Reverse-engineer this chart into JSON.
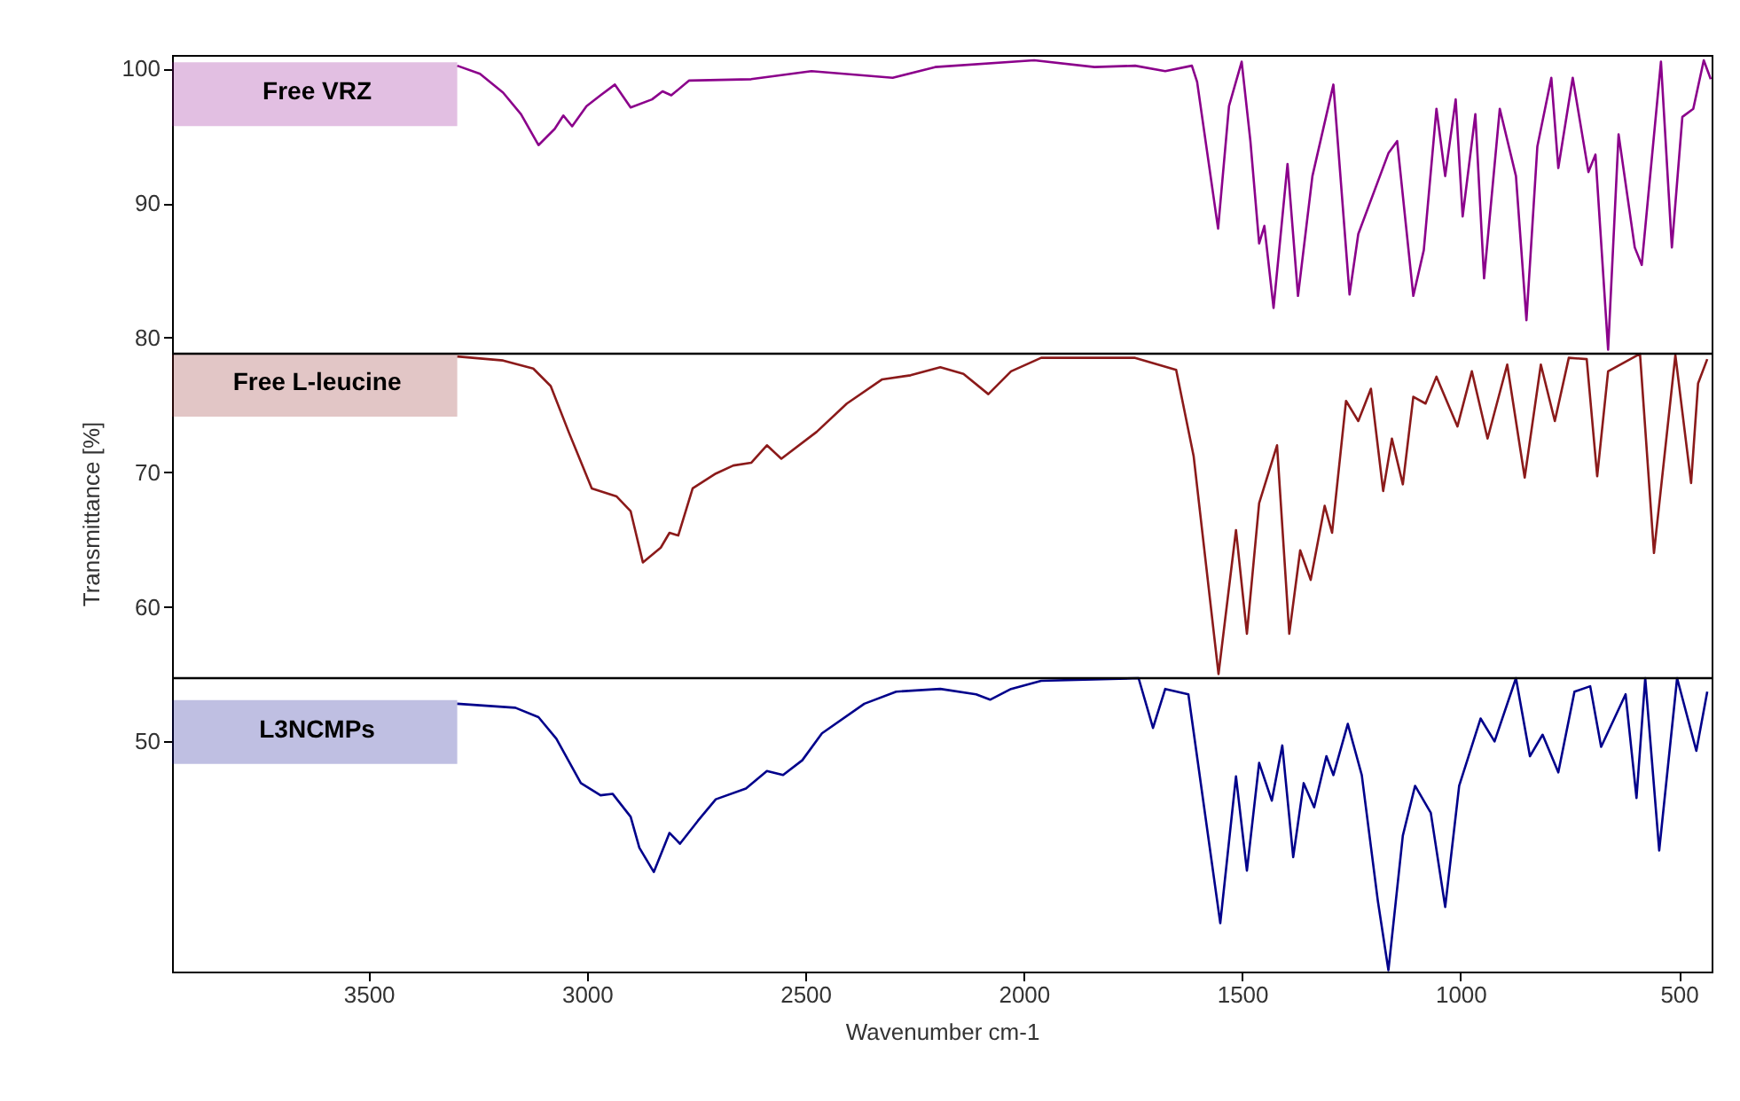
{
  "chart_data": {
    "type": "line",
    "xlabel": "Wavenumber cm-1",
    "ylabel": "Transmittance [%]",
    "xlim": [
      3950,
      425
    ],
    "ylim": [
      32.9,
      101
    ],
    "xticks": [
      3500,
      3000,
      2500,
      2000,
      1500,
      1000,
      500
    ],
    "yticks": [
      100,
      90,
      80,
      70,
      60,
      50
    ],
    "grid": false,
    "ref_lines": [
      {
        "axis": "y",
        "value": 78.8,
        "color": "#000000"
      },
      {
        "axis": "y",
        "value": 54.7,
        "color": "#000000"
      }
    ],
    "series": [
      {
        "name": "Free VRZ",
        "color": "#8b008b",
        "x": [
          3297,
          3245,
          3192,
          3151,
          3111,
          3074,
          3054,
          3034,
          3001,
          2969,
          2936,
          2900,
          2851,
          2827,
          2807,
          2766,
          2624,
          2486,
          2300,
          2203,
          1976,
          1838,
          1745,
          1676,
          1615,
          1603,
          1555,
          1530,
          1501,
          1481,
          1461,
          1449,
          1428,
          1396,
          1372,
          1339,
          1291,
          1254,
          1234,
          1165,
          1145,
          1108,
          1084,
          1055,
          1035,
          1011,
          995,
          966,
          946,
          910,
          873,
          849,
          824,
          792,
          776,
          743,
          707,
          691,
          662,
          638,
          601,
          585,
          541,
          516,
          492,
          467,
          443,
          427
        ],
        "values": [
          100.2,
          99.6,
          98.2,
          96.6,
          94.3,
          95.5,
          96.5,
          95.7,
          97.2,
          98.0,
          98.8,
          97.1,
          97.7,
          98.3,
          98.0,
          99.1,
          99.2,
          99.8,
          99.3,
          100.1,
          100.6,
          100.1,
          100.2,
          99.8,
          100.2,
          99.0,
          88.1,
          97.2,
          100.5,
          94.6,
          87.0,
          88.3,
          82.2,
          92.9,
          83.1,
          92.0,
          98.8,
          83.2,
          87.7,
          93.7,
          94.6,
          83.1,
          86.5,
          97.0,
          92.0,
          97.7,
          89.0,
          96.6,
          84.4,
          97.0,
          92.0,
          81.3,
          94.2,
          99.3,
          92.6,
          99.3,
          92.3,
          93.6,
          79.1,
          95.1,
          86.7,
          85.4,
          100.5,
          86.7,
          96.4,
          97.0,
          100.6,
          99.2
        ]
      },
      {
        "name": "Free L-leucine",
        "color": "#8b1a1a",
        "x": [
          3297,
          3192,
          3123,
          3083,
          3042,
          2989,
          2932,
          2900,
          2872,
          2831,
          2811,
          2791,
          2758,
          2705,
          2665,
          2624,
          2588,
          2555,
          2474,
          2405,
          2324,
          2259,
          2191,
          2138,
          2081,
          2029,
          1960,
          1745,
          1651,
          1611,
          1554,
          1514,
          1489,
          1461,
          1420,
          1392,
          1367,
          1343,
          1311,
          1294,
          1262,
          1234,
          1205,
          1177,
          1157,
          1132,
          1108,
          1080,
          1055,
          1007,
          974,
          938,
          893,
          853,
          816,
          784,
          752,
          711,
          687,
          662,
          589,
          557,
          508,
          472,
          456,
          435
        ],
        "values": [
          78.6,
          78.3,
          77.7,
          76.4,
          73.0,
          68.8,
          68.2,
          67.1,
          63.3,
          64.4,
          65.5,
          65.3,
          68.8,
          69.9,
          70.5,
          70.7,
          72.0,
          71.0,
          73.0,
          75.1,
          76.9,
          77.2,
          77.8,
          77.3,
          75.8,
          77.5,
          78.5,
          78.5,
          77.6,
          71.2,
          55.0,
          65.7,
          58.0,
          67.7,
          72.0,
          58.0,
          64.2,
          62.0,
          67.5,
          65.5,
          75.3,
          73.8,
          76.2,
          68.6,
          72.5,
          69.1,
          75.6,
          75.1,
          77.1,
          73.4,
          77.5,
          72.5,
          78.0,
          69.6,
          78.0,
          73.8,
          78.5,
          78.4,
          69.7,
          77.5,
          78.8,
          64.0,
          78.7,
          69.2,
          76.6,
          78.4
        ]
      },
      {
        "name": "L3NCMPs",
        "color": "#00008b",
        "x": [
          3297,
          3164,
          3111,
          3070,
          3014,
          2969,
          2941,
          2900,
          2880,
          2847,
          2811,
          2787,
          2746,
          2705,
          2636,
          2588,
          2551,
          2507,
          2462,
          2365,
          2292,
          2191,
          2109,
          2077,
          2029,
          1960,
          1737,
          1704,
          1676,
          1623,
          1550,
          1514,
          1489,
          1461,
          1432,
          1408,
          1383,
          1359,
          1335,
          1307,
          1291,
          1258,
          1226,
          1189,
          1165,
          1132,
          1104,
          1068,
          1035,
          1003,
          954,
          922,
          873,
          841,
          812,
          776,
          739,
          703,
          678,
          622,
          597,
          577,
          545,
          504,
          460,
          435
        ],
        "values": [
          52.8,
          52.5,
          51.8,
          50.2,
          46.9,
          46.0,
          46.1,
          44.4,
          42.1,
          40.3,
          43.2,
          42.4,
          44.1,
          45.7,
          46.5,
          47.8,
          47.5,
          48.6,
          50.6,
          52.8,
          53.7,
          53.9,
          53.5,
          53.1,
          53.9,
          54.5,
          54.7,
          51.0,
          53.9,
          53.5,
          36.5,
          47.4,
          40.4,
          48.4,
          45.6,
          49.7,
          41.4,
          46.9,
          45.1,
          48.9,
          47.5,
          51.3,
          47.5,
          38.1,
          33.0,
          43.0,
          46.7,
          44.7,
          37.7,
          46.7,
          51.7,
          50.0,
          54.7,
          48.9,
          50.5,
          47.7,
          53.7,
          54.1,
          49.6,
          53.5,
          45.8,
          54.7,
          41.9,
          54.7,
          49.3,
          53.7
        ]
      }
    ]
  }
}
